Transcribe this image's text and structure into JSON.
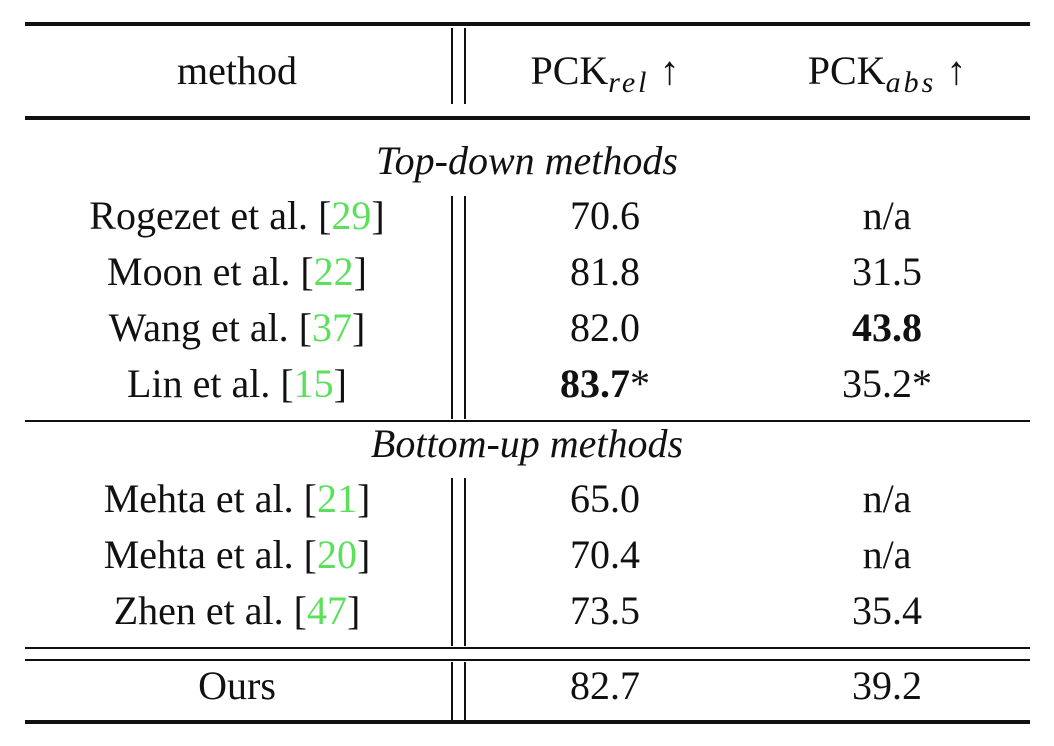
{
  "table": {
    "header": {
      "method": "method",
      "columns": [
        {
          "main": "PCK",
          "sub": "rel",
          "arrow": "↑"
        },
        {
          "main": "PCK",
          "sub": "abs",
          "arrow": "↑"
        }
      ]
    },
    "sections": [
      {
        "title": "Top-down methods",
        "rows": [
          {
            "method": "Rogezet et al.",
            "ref": {
              "open": "[",
              "num": "29",
              "close": "]"
            },
            "cells": [
              {
                "text": "70.6",
                "bold": false
              },
              {
                "text": "n/a",
                "bold": false
              }
            ]
          },
          {
            "method": "Moon et al.",
            "ref": {
              "open": "[",
              "num": "22",
              "close": "]"
            },
            "cells": [
              {
                "text": "81.8",
                "bold": false
              },
              {
                "text": "31.5",
                "bold": false
              }
            ]
          },
          {
            "method": "Wang et al.",
            "ref": {
              "open": "[",
              "num": "37",
              "close": "]"
            },
            "cells": [
              {
                "text": "82.0",
                "bold": false
              },
              {
                "text": "43.8",
                "bold": true
              }
            ]
          },
          {
            "method": "Lin et al.",
            "ref": {
              "open": "[",
              "num": "15",
              "close": "]"
            },
            "cells": [
              {
                "text": "83.7",
                "bold": true,
                "mark": "*"
              },
              {
                "text": "35.2*",
                "bold": false
              }
            ]
          }
        ]
      },
      {
        "title": "Bottom-up methods",
        "rows": [
          {
            "method": "Mehta et al.",
            "ref": {
              "open": "[",
              "num": "21",
              "close": "]"
            },
            "cells": [
              {
                "text": "65.0",
                "bold": false
              },
              {
                "text": "n/a",
                "bold": false
              }
            ]
          },
          {
            "method": "Mehta et al.",
            "ref": {
              "open": "[",
              "num": "20",
              "close": "]"
            },
            "cells": [
              {
                "text": "70.4",
                "bold": false
              },
              {
                "text": "n/a",
                "bold": false
              }
            ]
          },
          {
            "method": "Zhen et al.",
            "ref": {
              "open": "[",
              "num": "47",
              "close": "]"
            },
            "cells": [
              {
                "text": "73.5",
                "bold": false
              },
              {
                "text": "35.4",
                "bold": false
              }
            ]
          }
        ]
      }
    ],
    "footer": {
      "method": "Ours",
      "cells": [
        {
          "text": "82.7",
          "bold": false
        },
        {
          "text": "39.2",
          "bold": false
        }
      ]
    }
  }
}
